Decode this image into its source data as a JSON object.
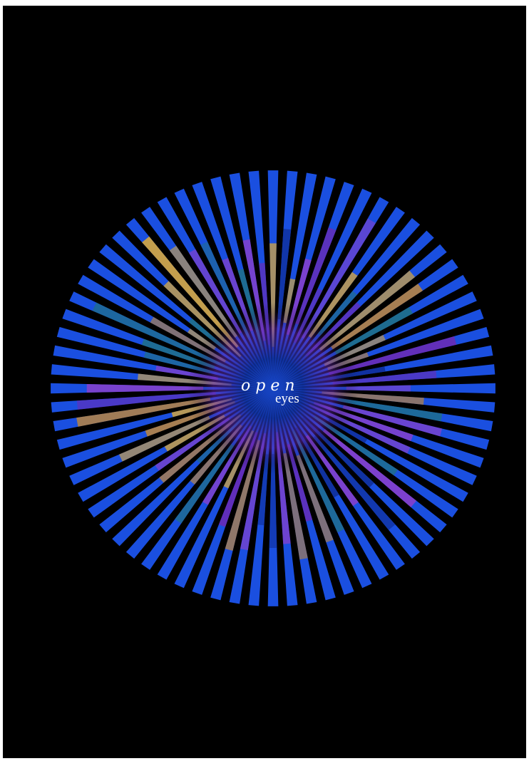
{
  "poster": {
    "background_color": "#000000",
    "artwork": {
      "description_name": "radial-starburst",
      "ray_count": 72,
      "colors": {
        "primary_blue": "#1a4fe0",
        "deep_blue": "#0f2f9a",
        "violet": "#6a2bb5",
        "purple": "#8b3fc9",
        "gold": "#d9a83a",
        "amber": "#c98a2e",
        "teal": "#1f6f8a"
      }
    },
    "title": {
      "word_1": "open",
      "word_2": "eyes"
    }
  }
}
